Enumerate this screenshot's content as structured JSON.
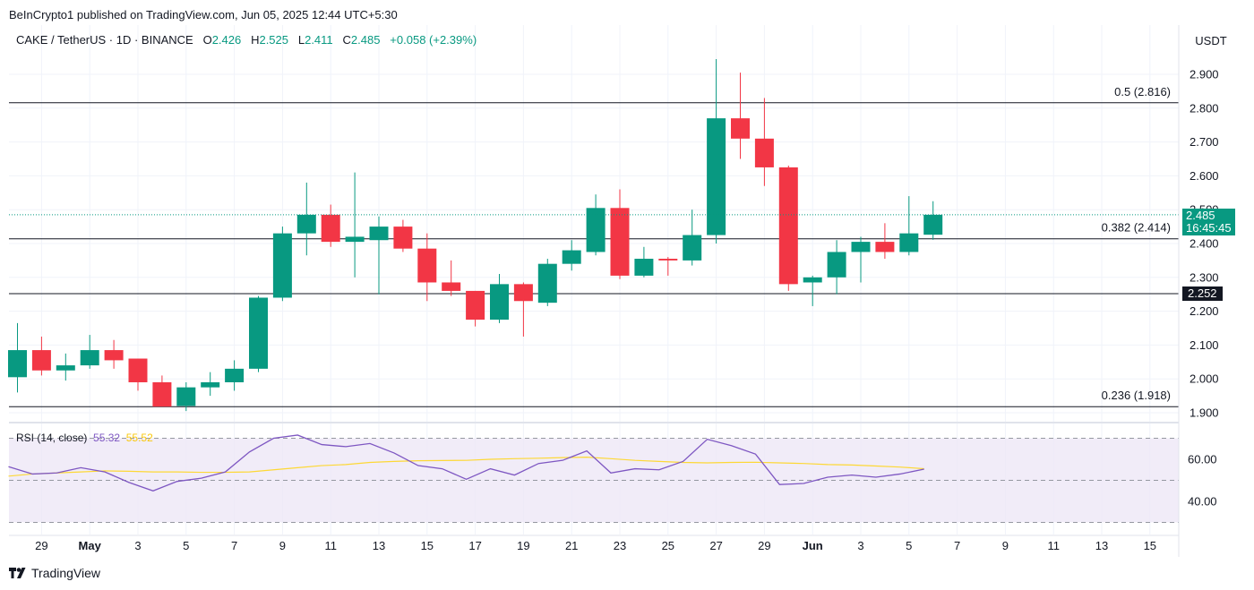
{
  "header": {
    "published": "BeInCrypto1 published on TradingView.com, Jun 05, 2025 12:44 UTC+5:30",
    "symbol": "CAKE / TetherUS · 1D · BINANCE",
    "o_label": "O",
    "o_value": "2.426",
    "h_label": "H",
    "h_value": "2.525",
    "l_label": "L",
    "l_value": "2.411",
    "c_label": "C",
    "c_value": "2.485",
    "change": "+0.058 (+2.39%)"
  },
  "currency": "USDT",
  "rsi_header": {
    "label": "RSI (14, close)",
    "rsi_value": "55.32",
    "ma_value": "55.52"
  },
  "price_tag": {
    "price": "2.485",
    "countdown": "16:45:45"
  },
  "support_tag": "2.252",
  "footer": {
    "logo_text": "TradingView"
  },
  "colors": {
    "up": "#089981",
    "down": "#f23645",
    "rsi_line": "#7e57c2",
    "rsi_ma": "#fdd835",
    "rsi_band": "#ede7f6",
    "grid": "#f0f3fa",
    "fib_line": "#131722"
  },
  "chart_data": [
    {
      "type": "candlestick",
      "title": "CAKE / TetherUS · 1D · BINANCE",
      "x_tick_labels": [
        "29",
        "May",
        "3",
        "5",
        "7",
        "9",
        "11",
        "13",
        "15",
        "17",
        "19",
        "21",
        "23",
        "25",
        "27",
        "29",
        "Jun",
        "3",
        "5",
        "7",
        "9",
        "11",
        "13",
        "15"
      ],
      "y_tick_labels": [
        "1.900",
        "2.000",
        "2.100",
        "2.200",
        "2.300",
        "2.400",
        "2.500",
        "2.600",
        "2.700",
        "2.800",
        "2.900"
      ],
      "ylim": [
        1.882,
        2.993
      ],
      "dates": [
        "Apr 28",
        "Apr 29",
        "Apr 30",
        "May 1",
        "May 2",
        "May 3",
        "May 4",
        "May 5",
        "May 6",
        "May 7",
        "May 8",
        "May 9",
        "May 10",
        "May 11",
        "May 12",
        "May 13",
        "May 14",
        "May 15",
        "May 16",
        "May 17",
        "May 18",
        "May 19",
        "May 20",
        "May 21",
        "May 22",
        "May 23",
        "May 24",
        "May 25",
        "May 26",
        "May 27",
        "May 28",
        "May 29",
        "May 30",
        "May 31",
        "Jun 1",
        "Jun 2",
        "Jun 3",
        "Jun 4",
        "Jun 5"
      ],
      "ohlc": [
        [
          2.005,
          2.165,
          1.96,
          2.085
        ],
        [
          2.085,
          2.125,
          2.01,
          2.025
        ],
        [
          2.025,
          2.075,
          1.995,
          2.04
        ],
        [
          2.04,
          2.13,
          2.03,
          2.085
        ],
        [
          2.085,
          2.115,
          2.03,
          2.055
        ],
        [
          2.06,
          2.06,
          1.965,
          1.99
        ],
        [
          1.99,
          2.01,
          1.92,
          1.918
        ],
        [
          1.92,
          1.99,
          1.905,
          1.975
        ],
        [
          1.975,
          2.02,
          1.95,
          1.99
        ],
        [
          1.99,
          2.055,
          1.965,
          2.03
        ],
        [
          2.03,
          2.245,
          2.02,
          2.24
        ],
        [
          2.24,
          2.45,
          2.23,
          2.43
        ],
        [
          2.43,
          2.58,
          2.365,
          2.485
        ],
        [
          2.485,
          2.515,
          2.39,
          2.405
        ],
        [
          2.405,
          2.61,
          2.3,
          2.42
        ],
        [
          2.41,
          2.48,
          2.25,
          2.45
        ],
        [
          2.45,
          2.47,
          2.375,
          2.385
        ],
        [
          2.385,
          2.43,
          2.23,
          2.285
        ],
        [
          2.285,
          2.35,
          2.245,
          2.26
        ],
        [
          2.26,
          2.26,
          2.155,
          2.175
        ],
        [
          2.175,
          2.31,
          2.165,
          2.28
        ],
        [
          2.28,
          2.285,
          2.125,
          2.23
        ],
        [
          2.225,
          2.355,
          2.215,
          2.34
        ],
        [
          2.34,
          2.41,
          2.32,
          2.38
        ],
        [
          2.375,
          2.545,
          2.365,
          2.505
        ],
        [
          2.505,
          2.56,
          2.295,
          2.305
        ],
        [
          2.305,
          2.39,
          2.3,
          2.355
        ],
        [
          2.355,
          2.36,
          2.305,
          2.35
        ],
        [
          2.35,
          2.5,
          2.335,
          2.425
        ],
        [
          2.425,
          2.945,
          2.4,
          2.77
        ],
        [
          2.77,
          2.905,
          2.65,
          2.71
        ],
        [
          2.71,
          2.83,
          2.57,
          2.625
        ],
        [
          2.625,
          2.63,
          2.26,
          2.28
        ],
        [
          2.285,
          2.305,
          2.215,
          2.3
        ],
        [
          2.3,
          2.41,
          2.25,
          2.375
        ],
        [
          2.375,
          2.42,
          2.285,
          2.405
        ],
        [
          2.405,
          2.46,
          2.355,
          2.375
        ],
        [
          2.375,
          2.54,
          2.365,
          2.43
        ],
        [
          2.426,
          2.525,
          2.411,
          2.485
        ]
      ],
      "fib_levels": [
        {
          "label": "0.5 (2.816)",
          "value": 2.816
        },
        {
          "label": "0.382 (2.414)",
          "value": 2.414
        },
        {
          "label": "0.236 (1.918)",
          "value": 1.918
        }
      ],
      "horizontal_lines": [
        2.252
      ],
      "last_price": 2.485
    },
    {
      "type": "line",
      "title": "RSI (14, close)",
      "y_tick_labels": [
        "40.00",
        "60.00"
      ],
      "ylim": [
        30,
        72
      ],
      "bands": [
        30,
        50,
        70
      ],
      "series": [
        {
          "name": "RSI",
          "values": [
            56.5,
            53.0,
            53.5,
            56.0,
            54.0,
            49.0,
            45.0,
            49.5,
            51.0,
            54.0,
            63.5,
            70.0,
            71.5,
            67.0,
            66.0,
            67.5,
            63.0,
            57.0,
            55.5,
            50.5,
            55.5,
            52.5,
            58.0,
            59.5,
            64.0,
            53.5,
            55.5,
            55.0,
            59.0,
            69.5,
            66.5,
            62.5,
            48.0,
            48.5,
            51.5,
            52.5,
            51.5,
            53.0,
            55.32
          ]
        },
        {
          "name": "MA",
          "values": [
            52.0,
            53.0,
            53.5,
            54.0,
            54.5,
            54.3,
            54.0,
            54.0,
            53.8,
            53.8,
            54.0,
            55.0,
            56.0,
            57.0,
            57.5,
            58.5,
            59.0,
            59.3,
            59.4,
            59.5,
            60.0,
            60.3,
            60.5,
            60.8,
            61.0,
            60.3,
            59.5,
            59.0,
            58.5,
            58.3,
            58.5,
            58.6,
            58.3,
            58.0,
            57.5,
            57.3,
            56.8,
            56.3,
            55.52
          ]
        }
      ]
    }
  ]
}
